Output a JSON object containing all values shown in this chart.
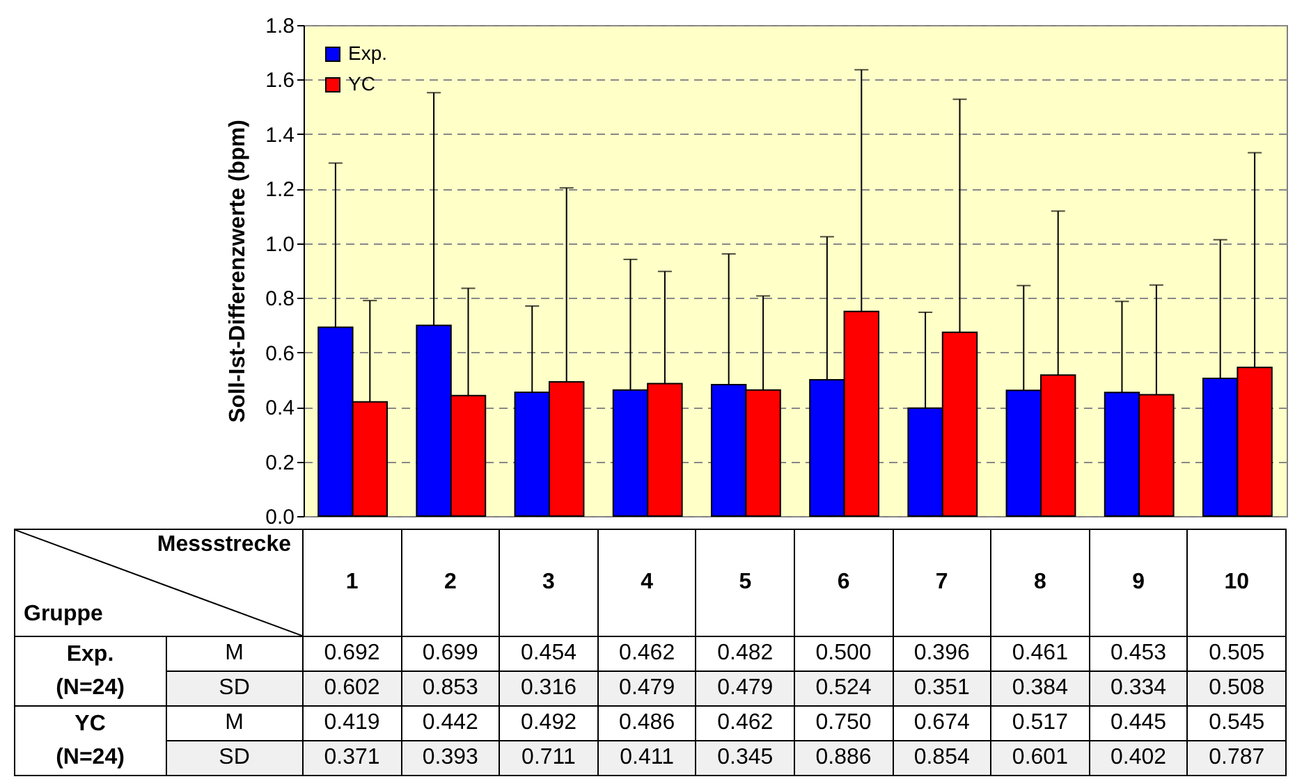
{
  "chart_data": {
    "type": "bar",
    "ylabel": "Soll-Ist-Differenzwerte (bpm)",
    "xlabel": "Messstrecke",
    "categories": [
      "1",
      "2",
      "3",
      "4",
      "5",
      "6",
      "7",
      "8",
      "9",
      "10"
    ],
    "series": [
      {
        "name": "Exp.",
        "color": "#0000ff",
        "values": [
          0.692,
          0.699,
          0.454,
          0.462,
          0.482,
          0.5,
          0.396,
          0.461,
          0.453,
          0.505
        ],
        "value_labels": [
          "0.692",
          "0.699",
          "0.454",
          "0.462",
          "0.482",
          "0.500",
          "0.396",
          "0.461",
          "0.453",
          "0.505"
        ],
        "errors": [
          [
            0.692,
            1.294
          ],
          [
            0.699,
            1.552
          ],
          [
            0.454,
            0.77
          ],
          [
            0.462,
            0.941
          ],
          [
            0.482,
            0.961
          ],
          [
            0.5,
            1.024
          ],
          [
            0.396,
            0.747
          ],
          [
            0.461,
            0.845
          ],
          [
            0.453,
            0.787
          ],
          [
            0.505,
            1.013
          ]
        ]
      },
      {
        "name": "YC",
        "color": "#ff0000",
        "values": [
          0.419,
          0.442,
          0.492,
          0.486,
          0.462,
          0.75,
          0.674,
          0.517,
          0.445,
          0.545
        ],
        "value_labels": [
          "0.419",
          "0.442",
          "0.492",
          "0.486",
          "0.462",
          "0.750",
          "0.674",
          "0.517",
          "0.445",
          "0.545"
        ],
        "errors": [
          [
            0.419,
            0.79
          ],
          [
            0.442,
            0.835
          ],
          [
            0.492,
            1.203
          ],
          [
            0.486,
            0.897
          ],
          [
            0.462,
            0.807
          ],
          [
            0.75,
            1.636
          ],
          [
            0.674,
            1.528
          ],
          [
            0.517,
            1.118
          ],
          [
            0.445,
            0.847
          ],
          [
            0.545,
            1.332
          ]
        ]
      }
    ],
    "ylim": [
      0,
      1.8
    ],
    "yticks": [
      {
        "value": 0,
        "label": "0.0"
      },
      {
        "value": 0.2,
        "label": "0.2"
      },
      {
        "value": 0.4,
        "label": "0.4"
      },
      {
        "value": 0.6,
        "label": "0.6"
      },
      {
        "value": 0.8,
        "label": "0.8"
      },
      {
        "value": 1,
        "label": "1.0"
      },
      {
        "value": 1.2,
        "label": "1.2"
      },
      {
        "value": 1.4,
        "label": "1.4"
      },
      {
        "value": 1.6,
        "label": "1.6"
      },
      {
        "value": 1.8,
        "label": "1.8"
      }
    ],
    "grid": "y",
    "legend": "top left",
    "annotations": [
      "Gruppe",
      "(N=24)",
      "(N=24)",
      "M",
      "SD",
      "M",
      "SD",
      "0.602",
      "0.853",
      "0.316",
      "0.479",
      "0.479",
      "0.524",
      "0.351",
      "0.384",
      "0.334",
      "0.508",
      "0.371",
      "0.393",
      "0.711",
      "0.411",
      "0.345",
      "0.886",
      "0.854",
      "0.601",
      "0.402",
      "0.787"
    ]
  }
}
